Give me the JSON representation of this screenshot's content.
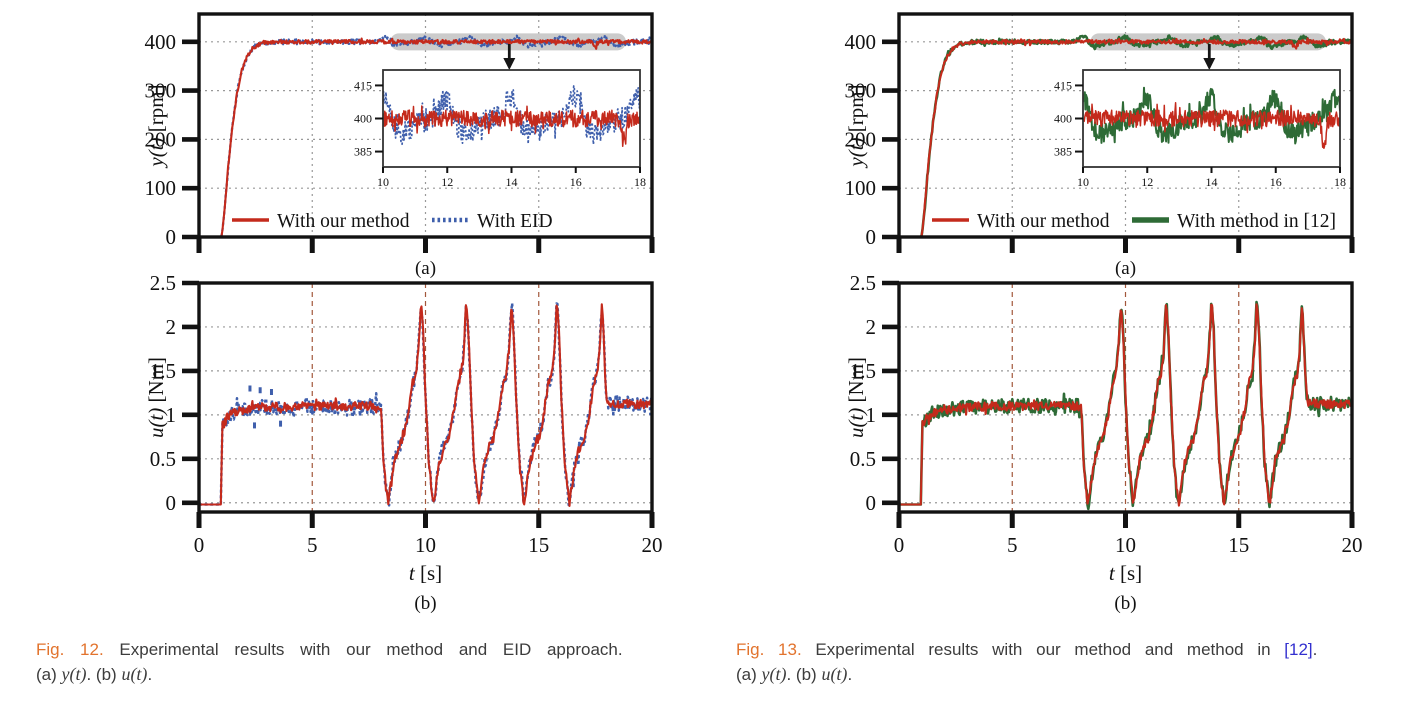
{
  "colors": {
    "red": "#c42a1c",
    "blue": "#3f5fac",
    "green": "#2e6b36",
    "axis": "#121212",
    "grid_gray": "#999999",
    "grid_brown": "#a2573b",
    "highlight": "#c7c7c7",
    "caption_text": "#3c3c3c",
    "fig_tag_orange": "#e2732d",
    "ref_blue": "#3330cf"
  },
  "waveforms": {
    "y_step": [
      [
        0,
        0
      ],
      [
        0.98,
        0
      ],
      [
        1.02,
        8
      ],
      [
        1.08,
        35
      ],
      [
        1.18,
        85
      ],
      [
        1.32,
        160
      ],
      [
        1.5,
        235
      ],
      [
        1.68,
        295
      ],
      [
        1.88,
        340
      ],
      [
        2.1,
        368
      ],
      [
        2.35,
        386
      ],
      [
        2.65,
        395
      ],
      [
        3.0,
        398.5
      ],
      [
        3.5,
        400
      ],
      [
        20,
        400
      ]
    ],
    "u_profile": [
      [
        0,
        -0.02
      ],
      [
        0.97,
        -0.02
      ],
      [
        1.0,
        0.5
      ],
      [
        1.03,
        0.95
      ],
      [
        1.1,
        0.9
      ],
      [
        1.25,
        0.97
      ],
      [
        1.5,
        1.02
      ],
      [
        2,
        1.06
      ],
      [
        3,
        1.09
      ],
      [
        5,
        1.1
      ],
      [
        8.05,
        1.1
      ],
      [
        8.12,
        0.6
      ],
      [
        8.22,
        0.25
      ],
      [
        8.35,
        -0.03
      ],
      [
        8.6,
        0.45
      ],
      [
        8.8,
        0.63
      ],
      [
        9.0,
        0.73
      ],
      [
        9.25,
        1.03
      ],
      [
        9.42,
        1.35
      ],
      [
        9.58,
        1.47
      ],
      [
        9.68,
        1.7
      ],
      [
        9.8,
        2.28
      ],
      [
        9.9,
        1.9
      ],
      [
        10.0,
        1.2
      ],
      [
        10.15,
        0.45
      ],
      [
        10.35,
        -0.03
      ],
      [
        10.6,
        0.45
      ],
      [
        10.8,
        0.63
      ],
      [
        11.0,
        0.73
      ],
      [
        11.25,
        1.03
      ],
      [
        11.42,
        1.35
      ],
      [
        11.58,
        1.47
      ],
      [
        11.68,
        1.7
      ],
      [
        11.8,
        2.28
      ],
      [
        11.9,
        1.9
      ],
      [
        12.0,
        1.2
      ],
      [
        12.15,
        0.45
      ],
      [
        12.35,
        -0.03
      ],
      [
        12.6,
        0.45
      ],
      [
        12.8,
        0.63
      ],
      [
        13.0,
        0.73
      ],
      [
        13.25,
        1.03
      ],
      [
        13.42,
        1.35
      ],
      [
        13.58,
        1.47
      ],
      [
        13.68,
        1.7
      ],
      [
        13.8,
        2.28
      ],
      [
        13.9,
        1.9
      ],
      [
        14.0,
        1.2
      ],
      [
        14.15,
        0.45
      ],
      [
        14.35,
        -0.03
      ],
      [
        14.6,
        0.45
      ],
      [
        14.8,
        0.63
      ],
      [
        15.0,
        0.73
      ],
      [
        15.25,
        1.03
      ],
      [
        15.42,
        1.35
      ],
      [
        15.58,
        1.47
      ],
      [
        15.68,
        1.7
      ],
      [
        15.8,
        2.28
      ],
      [
        15.9,
        1.9
      ],
      [
        16.0,
        1.2
      ],
      [
        16.15,
        0.45
      ],
      [
        16.35,
        -0.03
      ],
      [
        16.6,
        0.45
      ],
      [
        16.8,
        0.63
      ],
      [
        17.0,
        0.73
      ],
      [
        17.25,
        1.03
      ],
      [
        17.42,
        1.35
      ],
      [
        17.58,
        1.47
      ],
      [
        17.68,
        1.7
      ],
      [
        17.8,
        2.28
      ],
      [
        17.88,
        1.8
      ],
      [
        17.98,
        1.25
      ],
      [
        18.05,
        1.13
      ],
      [
        20,
        1.12
      ]
    ]
  },
  "chart_data": [
    {
      "id": "fig12a",
      "figure": "fig12",
      "slot": "a",
      "type": "line",
      "panel_label": "(a)",
      "ylabel_segments": [
        {
          "text": "y(t)",
          "math": true
        },
        {
          "text": " [rpm]",
          "math": false
        }
      ],
      "xlim": [
        0,
        20
      ],
      "ylim": [
        0,
        457
      ],
      "xticks": [
        0,
        5,
        10,
        15,
        20
      ],
      "xtick_labels_visible": false,
      "yticks": [
        0,
        100,
        200,
        300,
        400
      ],
      "grid_x": {
        "values": [
          5,
          10,
          15
        ],
        "colorKey": "grid_gray",
        "dash": "2 4"
      },
      "grid_y": {
        "values": [
          100,
          200,
          300,
          400
        ],
        "colorKey": "grid_gray",
        "dash": "2 4"
      },
      "series": [
        {
          "name": "With EID",
          "colorKey": "blue",
          "dash": "3 2.6",
          "width": 2.3,
          "waveform": "y_step",
          "noise": {
            "amp": 5,
            "from": 1.1
          },
          "bumps": {
            "centers": [
              8.15,
              10.0,
              12.0,
              14.0,
              16.0,
              17.9
            ],
            "amp": 12,
            "width": 0.18,
            "dip_amp": -7,
            "dip_offset": 0.55,
            "dip_width": 0.35
          }
        },
        {
          "name": "With our method",
          "colorKey": "red",
          "width": 2.1,
          "waveform": "y_step",
          "noise": {
            "amp": 3.8,
            "from": 1.1
          },
          "spikes": [
            {
              "c": 17.5,
              "a": -13,
              "w": 0.06
            }
          ]
        }
      ],
      "legend": {
        "order": [
          1,
          0
        ]
      },
      "highlight": {
        "t0": 8.45,
        "t1": 18.85,
        "y": 400
      },
      "arrow_t": 13.7,
      "inset": {
        "xlim": [
          10,
          18
        ],
        "ylim": [
          378,
          422
        ],
        "xticks": [
          10,
          12,
          14,
          16,
          18
        ],
        "yticks": [
          385,
          400,
          415
        ]
      }
    },
    {
      "id": "fig12b",
      "figure": "fig12",
      "slot": "b",
      "type": "line",
      "panel_label": "(b)",
      "ylabel_segments": [
        {
          "text": "u(t)",
          "math": true
        },
        {
          "text": " [Nm]",
          "math": false
        }
      ],
      "xlabel_segments": [
        {
          "text": "t",
          "math": true
        },
        {
          "text": " [s]",
          "math": false
        }
      ],
      "xlim": [
        0,
        20
      ],
      "ylim": [
        -0.105,
        2.5
      ],
      "xticks": [
        0,
        5,
        10,
        15,
        20
      ],
      "xtick_labels_visible": true,
      "yticks": [
        0,
        0.5,
        1,
        1.5,
        2,
        2.5
      ],
      "grid_x": {
        "values": [
          5,
          10,
          15
        ],
        "colorKey": "grid_brown",
        "dash": "5 4"
      },
      "grid_y": {
        "values": [
          0,
          0.5,
          1,
          1.5,
          2
        ],
        "colorKey": "grid_gray",
        "dash": "2 4"
      },
      "series": [
        {
          "name": "With EID",
          "colorKey": "blue",
          "dash": "3 2.6",
          "width": 2.5,
          "waveform": "u_profile",
          "noise": {
            "amp": 0.085,
            "from": 1.02
          },
          "outliers": [
            [
              2.25,
              1.3
            ],
            [
              2.45,
              0.88
            ],
            [
              2.7,
              1.28
            ],
            [
              3.2,
              1.26
            ],
            [
              3.6,
              0.9
            ]
          ]
        },
        {
          "name": "With our method",
          "colorKey": "red",
          "width": 2.1,
          "waveform": "u_profile",
          "noise": {
            "amp": 0.05,
            "from": 1.02
          }
        }
      ]
    },
    {
      "id": "fig13a",
      "figure": "fig13",
      "slot": "a",
      "type": "line",
      "panel_label": "(a)",
      "ylabel_segments": [
        {
          "text": "y(t)",
          "math": true
        },
        {
          "text": " [rpm]",
          "math": false
        }
      ],
      "xlim": [
        0,
        20
      ],
      "ylim": [
        0,
        457
      ],
      "xticks": [
        0,
        5,
        10,
        15,
        20
      ],
      "xtick_labels_visible": false,
      "yticks": [
        0,
        100,
        200,
        300,
        400
      ],
      "grid_x": {
        "values": [
          5,
          10,
          15
        ],
        "colorKey": "grid_gray",
        "dash": "2 4"
      },
      "grid_y": {
        "values": [
          100,
          200,
          300,
          400
        ],
        "colorKey": "grid_gray",
        "dash": "2 4"
      },
      "series": [
        {
          "name": "With method in [12]",
          "colorKey": "green",
          "width": 2.6,
          "waveform": "y_step",
          "noise": {
            "amp": 4.5,
            "from": 1.1
          },
          "bumps": {
            "centers": [
              8.15,
              10.0,
              12.0,
              14.0,
              16.0,
              17.9
            ],
            "amp": 11,
            "width": 0.18,
            "dip_amp": -7,
            "dip_offset": 0.55,
            "dip_width": 0.35
          }
        },
        {
          "name": "With our method",
          "colorKey": "red",
          "width": 2.1,
          "waveform": "y_step",
          "noise": {
            "amp": 3.8,
            "from": 1.1
          },
          "spikes": [
            {
              "c": 17.5,
              "a": -13,
              "w": 0.06
            }
          ]
        }
      ],
      "legend": {
        "order": [
          1,
          0
        ]
      },
      "highlight": {
        "t0": 8.45,
        "t1": 18.85,
        "y": 400
      },
      "arrow_t": 13.7,
      "inset": {
        "xlim": [
          10,
          18
        ],
        "ylim": [
          378,
          422
        ],
        "xticks": [
          10,
          12,
          14,
          16,
          18
        ],
        "yticks": [
          385,
          400,
          415
        ]
      }
    },
    {
      "id": "fig13b",
      "figure": "fig13",
      "slot": "b",
      "type": "line",
      "panel_label": "(b)",
      "ylabel_segments": [
        {
          "text": "u(t)",
          "math": true
        },
        {
          "text": " [Nm]",
          "math": false
        }
      ],
      "xlabel_segments": [
        {
          "text": "t",
          "math": true
        },
        {
          "text": " [s]",
          "math": false
        }
      ],
      "xlim": [
        0,
        20
      ],
      "ylim": [
        -0.105,
        2.5
      ],
      "xticks": [
        0,
        5,
        10,
        15,
        20
      ],
      "xtick_labels_visible": true,
      "yticks": [
        0,
        0.5,
        1,
        1.5,
        2,
        2.5
      ],
      "grid_x": {
        "values": [
          5,
          10,
          15
        ],
        "colorKey": "grid_brown",
        "dash": "5 4"
      },
      "grid_y": {
        "values": [
          0,
          0.5,
          1,
          1.5,
          2
        ],
        "colorKey": "grid_gray",
        "dash": "2 4"
      },
      "series": [
        {
          "name": "With method in [12]",
          "colorKey": "green",
          "width": 2.6,
          "waveform": "u_profile",
          "noise": {
            "amp": 0.08,
            "from": 1.02
          }
        },
        {
          "name": "With our method",
          "colorKey": "red",
          "width": 2.1,
          "waveform": "u_profile",
          "noise": {
            "amp": 0.05,
            "from": 1.02
          }
        }
      ]
    }
  ],
  "captions": {
    "fig12": {
      "line1": [
        {
          "text": "Fig. 12.",
          "style": "tag"
        },
        {
          "text": "  Experimental results with our method and EID approach.",
          "style": "plain"
        }
      ],
      "line2": [
        {
          "text": "(a) ",
          "style": "plain"
        },
        {
          "text": "y(t)",
          "style": "math"
        },
        {
          "text": ". (b) ",
          "style": "plain"
        },
        {
          "text": "u(t)",
          "style": "math"
        },
        {
          "text": ".",
          "style": "plain"
        }
      ]
    },
    "fig13": {
      "line1": [
        {
          "text": "Fig. 13.",
          "style": "tag"
        },
        {
          "text": "  Experimental results with our method and method in ",
          "style": "plain"
        },
        {
          "text": "[12]",
          "style": "link"
        },
        {
          "text": ".",
          "style": "plain"
        }
      ],
      "line2": [
        {
          "text": "(a) ",
          "style": "plain"
        },
        {
          "text": "y(t)",
          "style": "math"
        },
        {
          "text": ". (b) ",
          "style": "plain"
        },
        {
          "text": "u(t)",
          "style": "math"
        },
        {
          "text": ".",
          "style": "plain"
        }
      ]
    }
  }
}
